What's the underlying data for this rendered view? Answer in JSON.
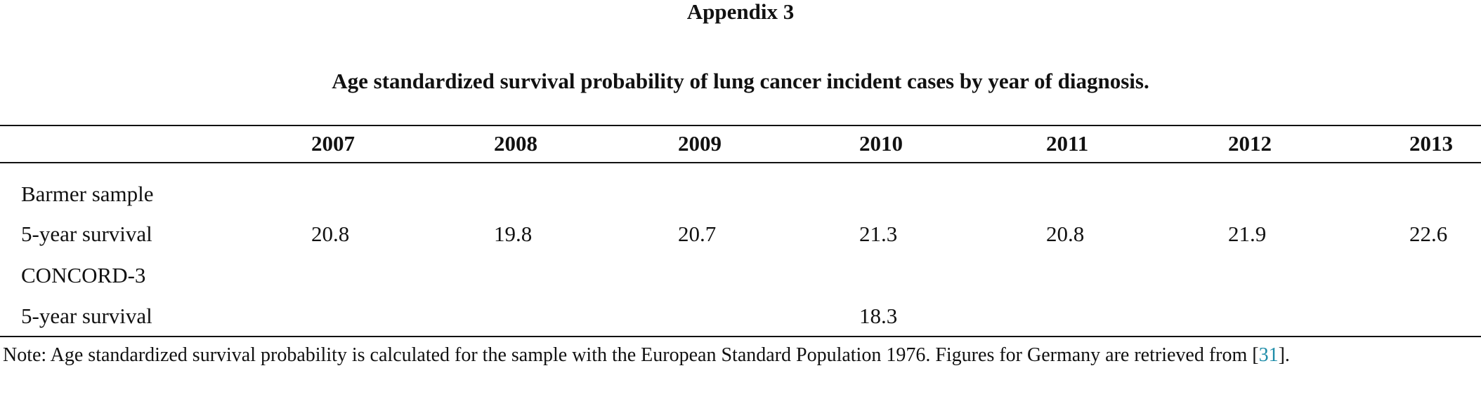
{
  "header": {
    "title": "Appendix 3",
    "caption": "Age standardized survival probability of lung cancer incident cases by year of diagnosis."
  },
  "table": {
    "columns": [
      null,
      "2007",
      "2008",
      "2009",
      "2010",
      "2011",
      "2012",
      "2013"
    ],
    "rows": [
      [
        "Barmer sample",
        null,
        null,
        null,
        null,
        null,
        null,
        null
      ],
      [
        "5-year survival",
        "20.8",
        "19.8",
        "20.7",
        "21.3",
        "20.8",
        "21.9",
        "22.6"
      ],
      [
        "CONCORD-3",
        null,
        null,
        null,
        null,
        null,
        null,
        null
      ],
      [
        "5-year survival",
        null,
        null,
        null,
        "18.3",
        null,
        null,
        null
      ]
    ]
  },
  "note": {
    "parts": [
      "Note: Age standardized survival probability is calculated for the sample with the European Standard Population 1976. Figures for Germany are retrieved from [",
      "31",
      "]."
    ]
  }
}
